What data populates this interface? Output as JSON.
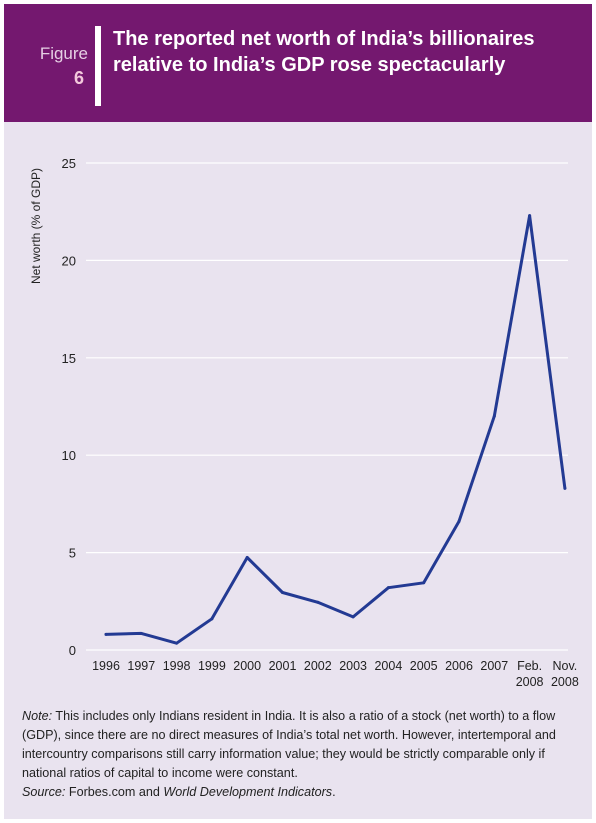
{
  "header": {
    "figure_word": "Figure",
    "figure_number": "6",
    "title": "The reported net worth of India’s billionaires relative to India’s GDP rose spectacularly"
  },
  "colors": {
    "header_bg": "#74186f",
    "panel_bg": "#e9e3ef",
    "line": "#233a93",
    "grid": "#ffffff"
  },
  "chart_data": {
    "type": "line",
    "title": "",
    "xlabel": "",
    "ylabel": "Net worth (% of GDP)",
    "ylim": [
      0,
      25
    ],
    "yticks": [
      0,
      5,
      10,
      15,
      20,
      25
    ],
    "grid": true,
    "categories": [
      [
        "1996"
      ],
      [
        "1997"
      ],
      [
        "1998"
      ],
      [
        "1999"
      ],
      [
        "2000"
      ],
      [
        "2001"
      ],
      [
        "2002"
      ],
      [
        "2003"
      ],
      [
        "2004"
      ],
      [
        "2005"
      ],
      [
        "2006"
      ],
      [
        "2007"
      ],
      [
        "Feb.",
        "2008"
      ],
      [
        "Nov.",
        "2008"
      ]
    ],
    "series": [
      {
        "values": [
          0.8,
          0.85,
          0.35,
          1.6,
          4.75,
          2.95,
          2.45,
          1.7,
          3.2,
          3.45,
          6.6,
          12.0,
          22.3,
          8.3
        ]
      }
    ]
  },
  "note": {
    "note_label": "Note:",
    "note_text": " This includes only Indians resident in India. It is also a ratio of a stock (net worth) to a flow (GDP), since there are no direct measures of India’s total net worth. However, intertemporal and intercountry comparisons still carry information value; they would be strictly comparable only if national ratios of capital to income were constant.",
    "source_label": "Source:",
    "source_text_1": " Forbes.com and ",
    "source_text_2": "World Development Indicators",
    "source_text_3": "."
  }
}
